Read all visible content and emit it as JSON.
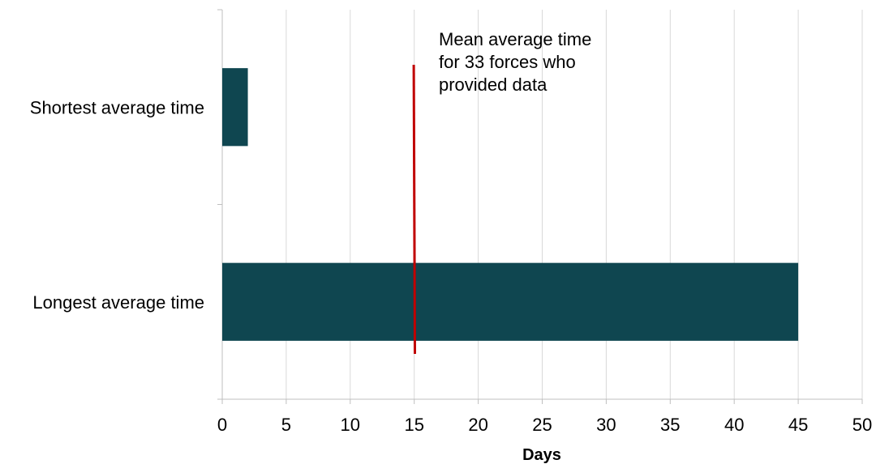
{
  "chart_data": {
    "type": "bar",
    "orientation": "horizontal",
    "categories": [
      "Shortest average time",
      "Longest average time"
    ],
    "values": [
      2,
      45
    ],
    "bar_color": "#0f4650",
    "xlabel": "Days",
    "xlim": [
      0,
      50
    ],
    "x_ticks": [
      "0",
      "5",
      "10",
      "15",
      "20",
      "25",
      "30",
      "35",
      "40",
      "45",
      "50"
    ],
    "grid": "vertical",
    "reference_line": {
      "value": 15,
      "color": "#c00000",
      "label_lines": [
        "Mean average time",
        "for 33 forces who",
        "provided data"
      ]
    }
  }
}
